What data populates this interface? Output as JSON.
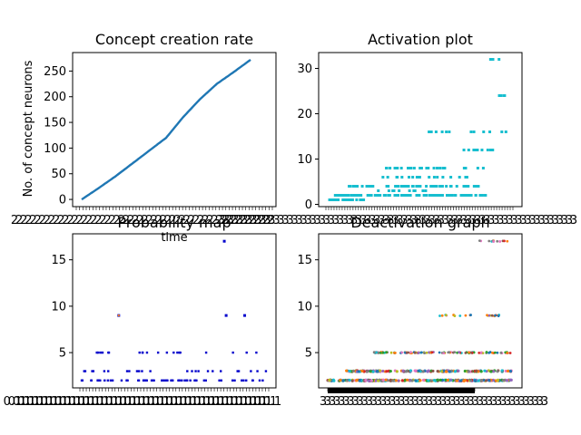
{
  "chart_data": [
    {
      "type": "line",
      "title": "Concept creation rate",
      "xlabel": "time",
      "ylabel": "No. of concept neurons",
      "yticks": [
        0,
        50,
        100,
        150,
        200,
        250
      ],
      "ylim": [
        -14,
        286
      ],
      "x_tick_label": "2",
      "color": "#1f77b4",
      "series": [
        {
          "x": [
            0,
            0.1,
            0.2,
            0.3,
            0.4,
            0.5,
            0.6,
            0.7,
            0.8,
            0.9,
            1.0
          ],
          "values": [
            0,
            22,
            45,
            70,
            95,
            120,
            160,
            195,
            225,
            248,
            272
          ]
        }
      ]
    },
    {
      "type": "scatter",
      "title": "Activation plot",
      "yticks": [
        0,
        10,
        20,
        30
      ],
      "ylim": [
        -0.5,
        33.5
      ],
      "x_tick_label": "3",
      "color": "#17becf",
      "levels": [
        1,
        2,
        3,
        4,
        6,
        8,
        12,
        16,
        24,
        32
      ]
    },
    {
      "type": "scatter",
      "title": "Probability map",
      "yticks": [
        5,
        10,
        15
      ],
      "ylim": [
        1.2,
        17.8
      ],
      "x_tick_label": "0.1",
      "color": "#0000cc",
      "accent_color": "#ff7f0e",
      "levels": [
        2,
        3,
        5,
        9,
        17
      ]
    },
    {
      "type": "scatter",
      "title": "Deactivation graph",
      "yticks": [
        5,
        10,
        15
      ],
      "ylim": [
        1.2,
        17.8
      ],
      "x_tick_label": "3",
      "levels": [
        2,
        3,
        5,
        9,
        17
      ]
    }
  ]
}
